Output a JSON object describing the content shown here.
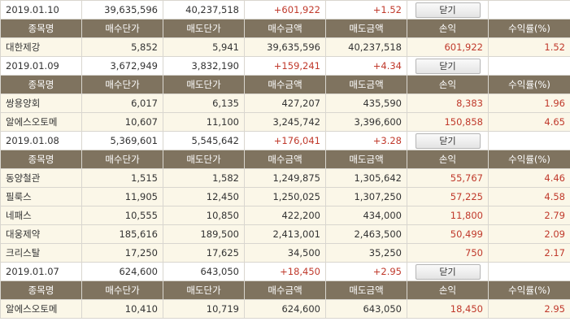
{
  "headers": [
    "종목명",
    "매수단가",
    "매도단가",
    "매수금액",
    "매도금액",
    "손익",
    "수익률(%)"
  ],
  "close_label": "닫기",
  "groups": [
    {
      "date": "2019.01.10",
      "buy_total": "39,635,596",
      "sell_total": "40,237,518",
      "profit": "+601,922",
      "rate": "+1.52",
      "rows": [
        [
          "대한제강",
          "5,852",
          "5,941",
          "39,635,596",
          "40,237,518",
          "601,922",
          "1.52"
        ]
      ]
    },
    {
      "date": "2019.01.09",
      "buy_total": "3,672,949",
      "sell_total": "3,832,190",
      "profit": "+159,241",
      "rate": "+4.34",
      "rows": [
        [
          "쌍용양회",
          "6,017",
          "6,135",
          "427,207",
          "435,590",
          "8,383",
          "1.96"
        ],
        [
          "알에스오토메",
          "10,607",
          "11,100",
          "3,245,742",
          "3,396,600",
          "150,858",
          "4.65"
        ]
      ]
    },
    {
      "date": "2019.01.08",
      "buy_total": "5,369,601",
      "sell_total": "5,545,642",
      "profit": "+176,041",
      "rate": "+3.28",
      "rows": [
        [
          "동양철관",
          "1,515",
          "1,582",
          "1,249,875",
          "1,305,642",
          "55,767",
          "4.46"
        ],
        [
          "필룩스",
          "11,905",
          "12,450",
          "1,250,025",
          "1,307,250",
          "57,225",
          "4.58"
        ],
        [
          "네패스",
          "10,555",
          "10,850",
          "422,200",
          "434,000",
          "11,800",
          "2.79"
        ],
        [
          "대웅제약",
          "185,616",
          "189,500",
          "2,413,001",
          "2,463,500",
          "50,499",
          "2.09"
        ],
        [
          "크리스탈",
          "17,250",
          "17,625",
          "34,500",
          "35,250",
          "750",
          "2.17"
        ]
      ]
    },
    {
      "date": "2019.01.07",
      "buy_total": "624,600",
      "sell_total": "643,050",
      "profit": "+18,450",
      "rate": "+2.95",
      "rows": [
        [
          "알에스오토메",
          "10,410",
          "10,719",
          "624,600",
          "643,050",
          "18,450",
          "2.95"
        ]
      ]
    }
  ]
}
